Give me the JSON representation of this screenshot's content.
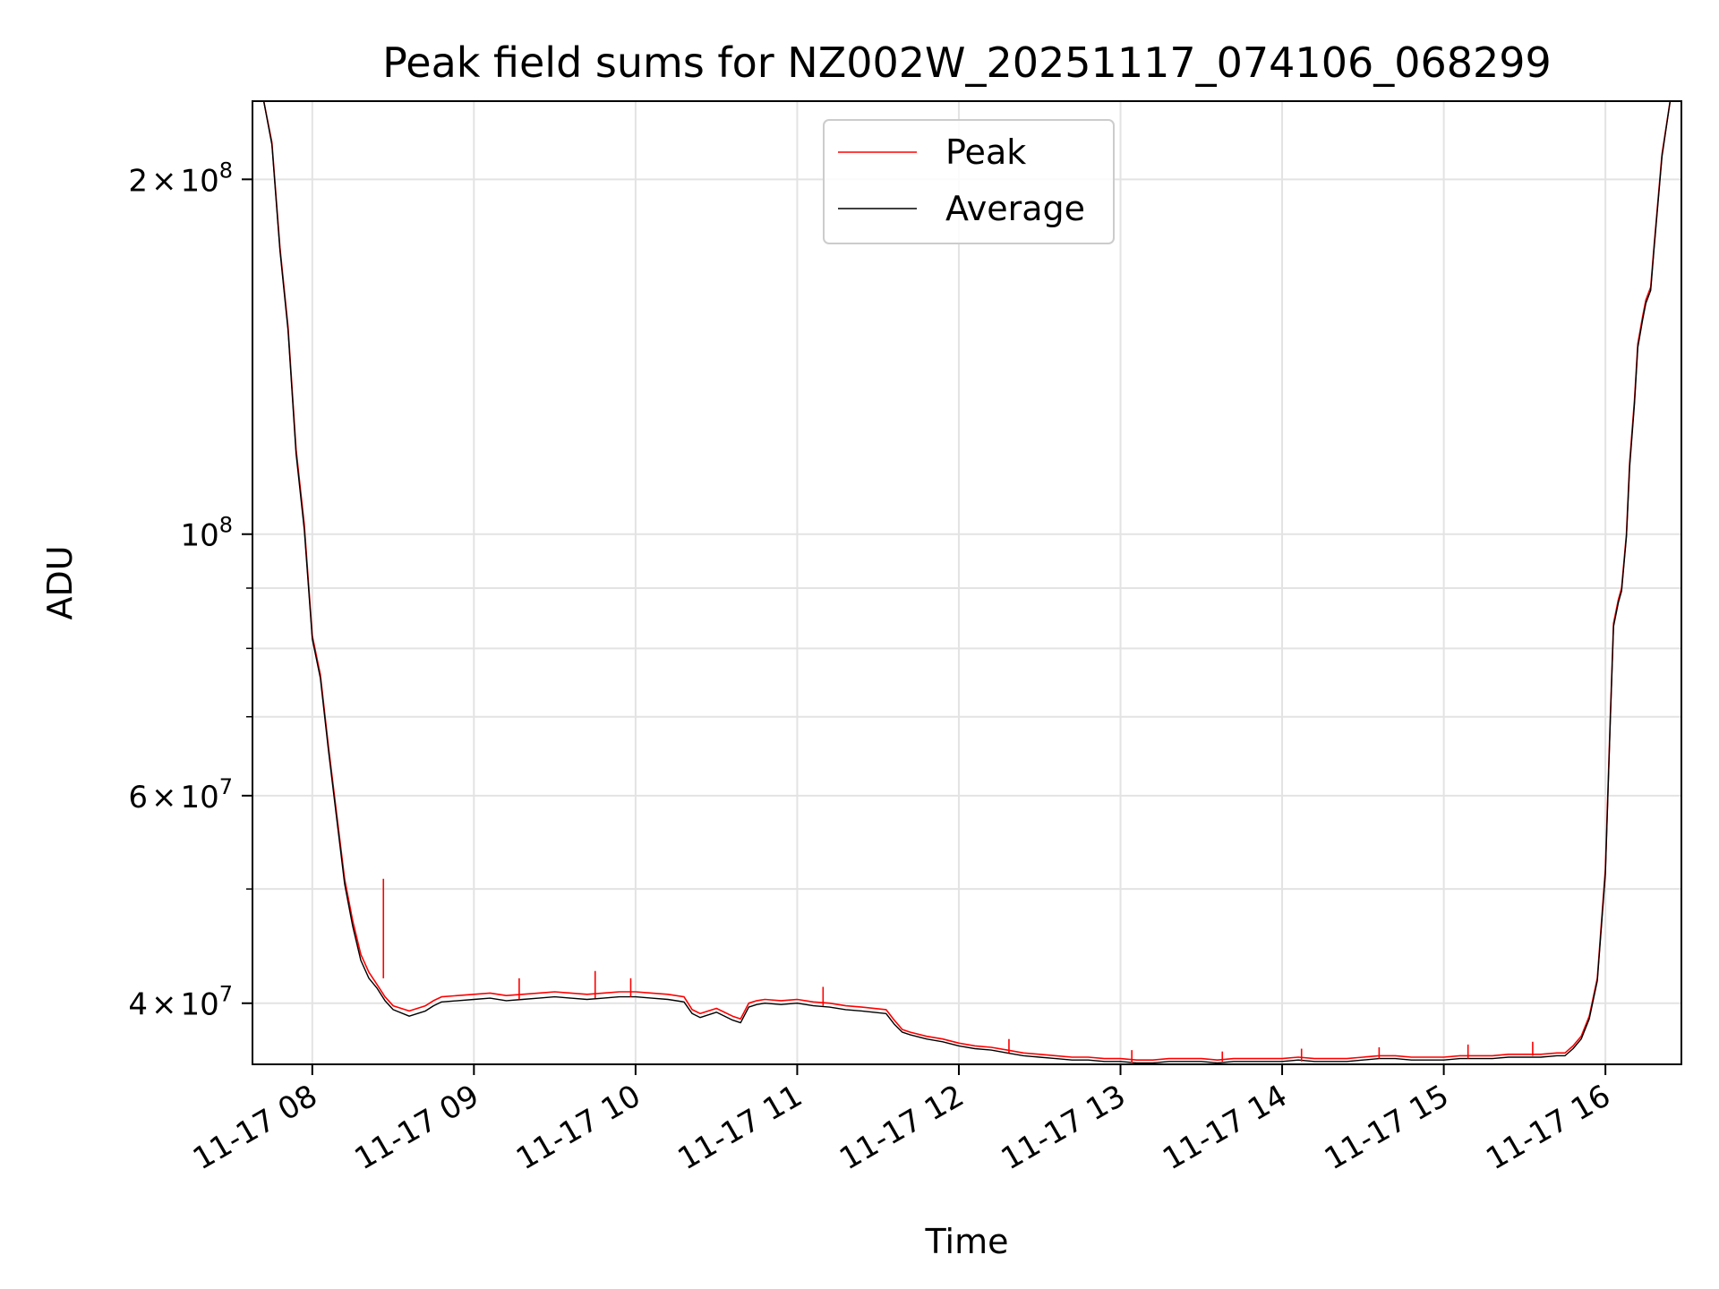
{
  "chart_data": {
    "type": "line",
    "title": "Peak field sums for NZ002W_20251117_074106_068299",
    "xlabel": "Time",
    "ylabel": "ADU",
    "yscale": "log",
    "xlim": [
      7.63,
      16.47
    ],
    "ylim": [
      35500000,
      233000000
    ],
    "grid": true,
    "legend_position": "top-center",
    "x_ticks": [
      8,
      9,
      10,
      11,
      12,
      13,
      14,
      15,
      16
    ],
    "x_tick_labels": [
      "11-17 08",
      "11-17 09",
      "11-17 10",
      "11-17 11",
      "11-17 12",
      "11-17 13",
      "11-17 14",
      "11-17 15",
      "11-17 16"
    ],
    "y_ticks": [
      {
        "value": 40000000,
        "mantissa": "4",
        "exponent": "7"
      },
      {
        "value": 60000000,
        "mantissa": "6",
        "exponent": "7"
      },
      {
        "value": 100000000,
        "mantissa": "",
        "exponent": "8"
      },
      {
        "value": 200000000,
        "mantissa": "2",
        "exponent": "8"
      }
    ],
    "y_minor_ticks": [
      50000000,
      70000000,
      80000000,
      90000000
    ],
    "series": [
      {
        "name": "Peak",
        "color": "#ff0000",
        "x": [
          7.7,
          7.75,
          7.8,
          7.85,
          7.9,
          7.95,
          8.0,
          8.05,
          8.1,
          8.15,
          8.2,
          8.25,
          8.3,
          8.35,
          8.4,
          8.45,
          8.5,
          8.6,
          8.7,
          8.75,
          8.8,
          8.9,
          9.0,
          9.1,
          9.2,
          9.3,
          9.4,
          9.5,
          9.6,
          9.7,
          9.8,
          9.9,
          10.0,
          10.1,
          10.2,
          10.3,
          10.35,
          10.4,
          10.5,
          10.6,
          10.65,
          10.7,
          10.75,
          10.8,
          10.9,
          11.0,
          11.1,
          11.2,
          11.3,
          11.4,
          11.55,
          11.6,
          11.65,
          11.7,
          11.8,
          11.9,
          12.0,
          12.1,
          12.2,
          12.3,
          12.4,
          12.5,
          12.6,
          12.7,
          12.8,
          12.9,
          13.0,
          13.1,
          13.2,
          13.3,
          13.4,
          13.5,
          13.6,
          13.7,
          13.8,
          13.9,
          14.0,
          14.1,
          14.2,
          14.3,
          14.4,
          14.5,
          14.6,
          14.7,
          14.8,
          14.9,
          15.0,
          15.1,
          15.2,
          15.3,
          15.4,
          15.5,
          15.6,
          15.7,
          15.75,
          15.8,
          15.85,
          15.9,
          15.95,
          16.0,
          16.03,
          16.05,
          16.08,
          16.1,
          16.13,
          16.15,
          16.18,
          16.2,
          16.23,
          16.25,
          16.28,
          16.3,
          16.35,
          16.4
        ],
        "y": [
          233000000,
          215000000,
          175000000,
          150000000,
          118000000,
          102000000,
          82000000,
          76000000,
          66000000,
          58000000,
          51000000,
          47000000,
          44000000,
          42500000,
          41500000,
          40500000,
          39800000,
          39400000,
          39800000,
          40200000,
          40500000,
          40600000,
          40700000,
          40800000,
          40600000,
          40700000,
          40800000,
          40900000,
          40800000,
          40700000,
          40800000,
          40900000,
          40900000,
          40800000,
          40700000,
          40500000,
          39500000,
          39200000,
          39600000,
          39000000,
          38800000,
          40000000,
          40200000,
          40300000,
          40200000,
          40300000,
          40100000,
          40000000,
          39800000,
          39700000,
          39500000,
          38700000,
          38000000,
          37800000,
          37500000,
          37300000,
          37000000,
          36800000,
          36700000,
          36500000,
          36300000,
          36200000,
          36100000,
          36000000,
          36000000,
          35900000,
          35900000,
          35800000,
          35800000,
          35900000,
          35900000,
          35900000,
          35800000,
          35900000,
          35900000,
          35900000,
          35900000,
          36000000,
          35900000,
          35900000,
          35900000,
          36000000,
          36100000,
          36100000,
          36000000,
          36000000,
          36000000,
          36100000,
          36100000,
          36100000,
          36200000,
          36200000,
          36200000,
          36300000,
          36300000,
          36800000,
          37500000,
          39000000,
          42000000,
          52000000,
          70000000,
          84000000,
          88000000,
          90000000,
          100000000,
          115000000,
          130000000,
          145000000,
          153000000,
          158000000,
          162000000,
          175000000,
          210000000,
          233000000
        ]
      },
      {
        "name": "Average",
        "color": "#000000",
        "x": [
          7.7,
          7.75,
          7.8,
          7.85,
          7.9,
          7.95,
          8.0,
          8.05,
          8.1,
          8.15,
          8.2,
          8.25,
          8.3,
          8.35,
          8.4,
          8.45,
          8.5,
          8.6,
          8.7,
          8.75,
          8.8,
          8.9,
          9.0,
          9.1,
          9.2,
          9.3,
          9.4,
          9.5,
          9.6,
          9.7,
          9.8,
          9.9,
          10.0,
          10.1,
          10.2,
          10.3,
          10.35,
          10.4,
          10.5,
          10.6,
          10.65,
          10.7,
          10.75,
          10.8,
          10.9,
          11.0,
          11.1,
          11.2,
          11.3,
          11.4,
          11.55,
          11.6,
          11.65,
          11.7,
          11.8,
          11.9,
          12.0,
          12.1,
          12.2,
          12.3,
          12.4,
          12.5,
          12.6,
          12.7,
          12.8,
          12.9,
          13.0,
          13.1,
          13.2,
          13.3,
          13.4,
          13.5,
          13.6,
          13.7,
          13.8,
          13.9,
          14.0,
          14.1,
          14.2,
          14.3,
          14.4,
          14.5,
          14.6,
          14.7,
          14.8,
          14.9,
          15.0,
          15.1,
          15.2,
          15.3,
          15.4,
          15.5,
          15.6,
          15.7,
          15.75,
          15.8,
          15.85,
          15.9,
          15.95,
          16.0,
          16.03,
          16.05,
          16.08,
          16.1,
          16.13,
          16.15,
          16.18,
          16.2,
          16.23,
          16.25,
          16.28,
          16.3,
          16.35,
          16.4
        ],
        "y": [
          233000000,
          214000000,
          174000000,
          149000000,
          117000000,
          101000000,
          81500000,
          75500000,
          65500000,
          57500000,
          50500000,
          46500000,
          43500000,
          42000000,
          41200000,
          40200000,
          39500000,
          39000000,
          39400000,
          39800000,
          40100000,
          40200000,
          40300000,
          40400000,
          40200000,
          40300000,
          40400000,
          40500000,
          40400000,
          40300000,
          40400000,
          40500000,
          40500000,
          40400000,
          40300000,
          40100000,
          39200000,
          38900000,
          39300000,
          38700000,
          38500000,
          39700000,
          39900000,
          40000000,
          39900000,
          40000000,
          39800000,
          39700000,
          39500000,
          39400000,
          39200000,
          38400000,
          37800000,
          37600000,
          37300000,
          37100000,
          36800000,
          36600000,
          36500000,
          36300000,
          36100000,
          36000000,
          35900000,
          35800000,
          35800000,
          35700000,
          35700000,
          35600000,
          35600000,
          35700000,
          35700000,
          35700000,
          35600000,
          35700000,
          35700000,
          35700000,
          35700000,
          35800000,
          35700000,
          35700000,
          35700000,
          35800000,
          35900000,
          35900000,
          35800000,
          35800000,
          35800000,
          35900000,
          35900000,
          35900000,
          36000000,
          36000000,
          36000000,
          36100000,
          36100000,
          36600000,
          37300000,
          38800000,
          41800000,
          51500000,
          69500000,
          83500000,
          87500000,
          89500000,
          99500000,
          114000000,
          129000000,
          144000000,
          152000000,
          157000000,
          161000000,
          174000000,
          209000000,
          233000000
        ]
      }
    ],
    "spikes": [
      {
        "x": 8.44,
        "peak": 51000000,
        "average": 42000000
      },
      {
        "x": 9.28,
        "peak": 42000000,
        "average": 40300000
      },
      {
        "x": 9.75,
        "peak": 42600000,
        "average": 40400000
      },
      {
        "x": 9.97,
        "peak": 42000000,
        "average": 40500000
      },
      {
        "x": 11.16,
        "peak": 41300000,
        "average": 39800000
      },
      {
        "x": 12.31,
        "peak": 37300000,
        "average": 36300000
      },
      {
        "x": 13.07,
        "peak": 36500000,
        "average": 35600000
      },
      {
        "x": 13.63,
        "peak": 36400000,
        "average": 35700000
      },
      {
        "x": 14.12,
        "peak": 36600000,
        "average": 35700000
      },
      {
        "x": 14.6,
        "peak": 36700000,
        "average": 35900000
      },
      {
        "x": 15.15,
        "peak": 36900000,
        "average": 35900000
      },
      {
        "x": 15.55,
        "peak": 37100000,
        "average": 36100000
      }
    ]
  }
}
